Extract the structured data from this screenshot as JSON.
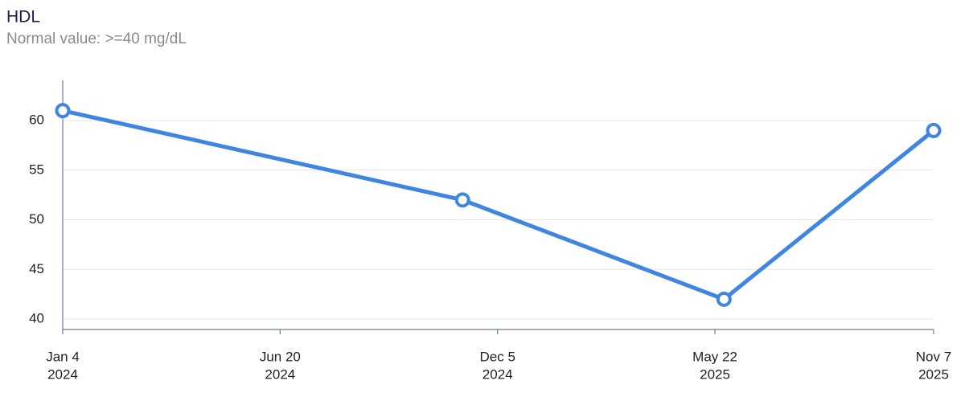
{
  "chart_data": {
    "type": "line",
    "title": "HDL",
    "subtitle": "Normal value: >=40 mg/dL",
    "x": [
      "2024-01-04",
      "2024-11-08",
      "2025-05-29",
      "2025-11-07"
    ],
    "values": [
      61,
      52,
      42,
      59
    ],
    "color": "#3f85e2",
    "xlim": [
      "2024-01-04",
      "2025-11-07"
    ],
    "xticks": [
      {
        "value": "2024-01-04",
        "label": [
          "Jan 4",
          "2024"
        ]
      },
      {
        "value": "2024-06-20",
        "label": [
          "Jun 20",
          "2024"
        ]
      },
      {
        "value": "2024-12-05",
        "label": [
          "Dec 5",
          "2024"
        ]
      },
      {
        "value": "2025-05-22",
        "label": [
          "May 22",
          "2025"
        ]
      },
      {
        "value": "2025-11-07",
        "label": [
          "Nov 7",
          "2025"
        ]
      }
    ],
    "ylim": [
      38.95,
      64.05
    ],
    "yticks": [
      40,
      45,
      50,
      55,
      60
    ],
    "grid": true
  }
}
